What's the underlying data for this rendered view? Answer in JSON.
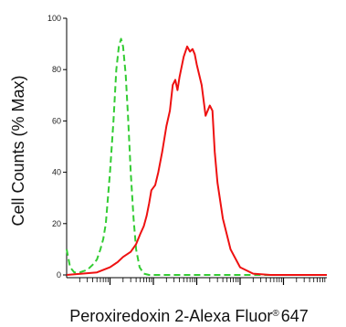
{
  "chart_data": {
    "type": "line",
    "title": "",
    "xlabel": "Peroxiredoxin 2-Alexa Fluor",
    "xlabel_mark": "®",
    "xlabel_suffix": "647",
    "ylabel": "Cell Counts (% Max)",
    "x_scale": "log",
    "xlim": [
      1,
      1000000
    ],
    "x_major_ticks": [
      10,
      100,
      1000,
      10000,
      100000
    ],
    "ylim": [
      0,
      100
    ],
    "yticks": [
      0,
      20,
      40,
      60,
      80,
      100
    ],
    "ytick_labels": [
      "0",
      "20",
      "40",
      "60",
      "80",
      "100"
    ],
    "grid": false,
    "legend": "none",
    "series": [
      {
        "color": "#33cc33",
        "style": "dashed",
        "points": [
          [
            1.0,
            10
          ],
          [
            1.2,
            3
          ],
          [
            1.5,
            1
          ],
          [
            2,
            1
          ],
          [
            3,
            2
          ],
          [
            4,
            4
          ],
          [
            5,
            6
          ],
          [
            6,
            10
          ],
          [
            7,
            14
          ],
          [
            8,
            20
          ],
          [
            10,
            40
          ],
          [
            12,
            60
          ],
          [
            14,
            80
          ],
          [
            16,
            89
          ],
          [
            18,
            92
          ],
          [
            20,
            89
          ],
          [
            23,
            78
          ],
          [
            26,
            62
          ],
          [
            30,
            40
          ],
          [
            35,
            22
          ],
          [
            40,
            10
          ],
          [
            48,
            3
          ],
          [
            60,
            0.5
          ],
          [
            80,
            0
          ],
          [
            1000000,
            0
          ]
        ]
      },
      {
        "color": "#ee1111",
        "style": "solid",
        "points": [
          [
            1,
            0
          ],
          [
            5,
            1
          ],
          [
            10,
            3
          ],
          [
            15,
            5
          ],
          [
            20,
            7
          ],
          [
            30,
            9
          ],
          [
            40,
            12
          ],
          [
            50,
            16
          ],
          [
            60,
            19
          ],
          [
            70,
            23
          ],
          [
            80,
            28
          ],
          [
            90,
            33
          ],
          [
            110,
            35
          ],
          [
            130,
            40
          ],
          [
            160,
            48
          ],
          [
            200,
            58
          ],
          [
            240,
            64
          ],
          [
            280,
            74
          ],
          [
            320,
            76
          ],
          [
            360,
            72
          ],
          [
            400,
            77
          ],
          [
            500,
            85
          ],
          [
            600,
            89
          ],
          [
            700,
            87
          ],
          [
            800,
            88
          ],
          [
            900,
            86
          ],
          [
            1000,
            82
          ],
          [
            1300,
            74
          ],
          [
            1600,
            62
          ],
          [
            2000,
            66
          ],
          [
            2300,
            64
          ],
          [
            2600,
            48
          ],
          [
            3000,
            36
          ],
          [
            4000,
            22
          ],
          [
            6000,
            10
          ],
          [
            10000,
            3
          ],
          [
            20000,
            0.5
          ],
          [
            50000,
            0
          ],
          [
            1000000,
            0
          ]
        ]
      }
    ]
  }
}
